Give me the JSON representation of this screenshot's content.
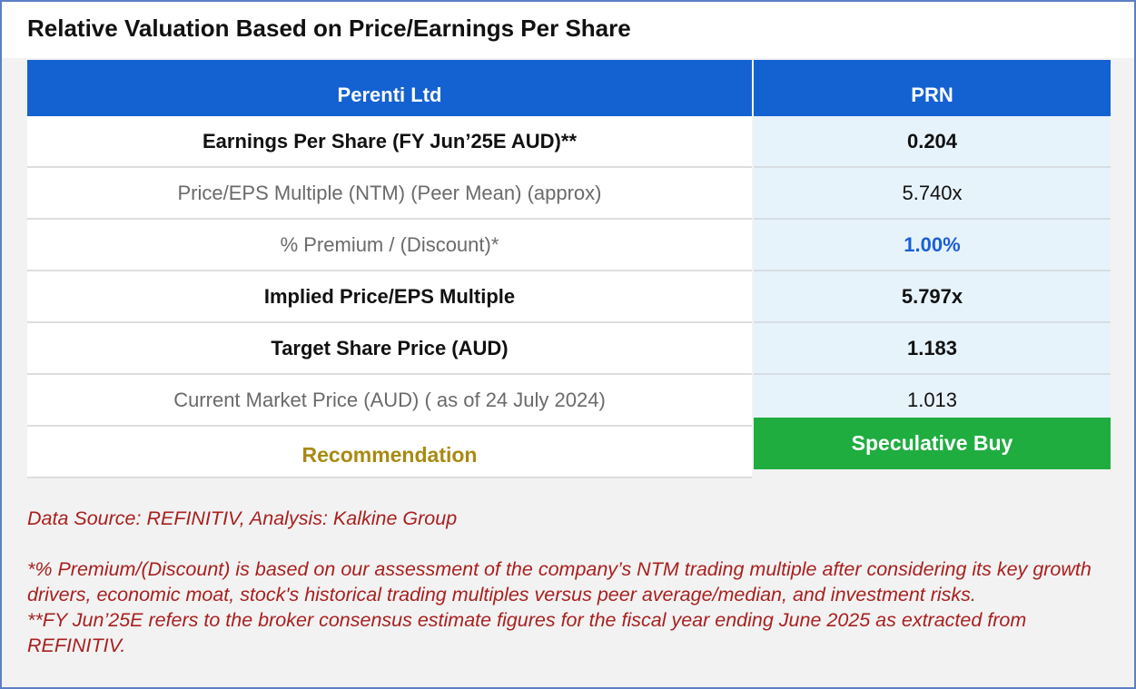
{
  "title": "Relative Valuation Based on Price/Earnings Per Share",
  "table": {
    "header": {
      "label": "Perenti Ltd",
      "value": "PRN"
    },
    "rows": [
      {
        "label": "Earnings Per Share (FY Jun’25E AUD)**",
        "value": "0.204"
      },
      {
        "label": "Price/EPS Multiple (NTM) (Peer Mean) (approx)",
        "value": "5.740x"
      },
      {
        "label": "% Premium / (Discount)*",
        "value": "1.00%"
      },
      {
        "label": "Implied Price/EPS Multiple",
        "value": "5.797x"
      },
      {
        "label": "Target Share Price (AUD)",
        "value": "1.183"
      },
      {
        "label": "Current Market Price (AUD) ( as of 24 July 2024)",
        "value": "1.013"
      }
    ],
    "recommendation": {
      "label": "Recommendation",
      "value": "Speculative Buy"
    }
  },
  "notes": {
    "source": "Data Source: REFINITIV, Analysis: Kalkine Group",
    "footnote1": "*% Premium/(Discount) is based on our assessment of the company’s NTM trading multiple after considering its key growth drivers, economic moat, stock's historical trading multiples versus peer average/median, and investment risks.",
    "footnote2": "**FY Jun’25E refers to the broker consensus estimate figures for the fiscal year ending June 2025 as extracted from REFINITIV."
  },
  "colors": {
    "header_blue": "#1461d2",
    "value_cell_bg": "#e7f3fb",
    "recommendation_green": "#1fad3f",
    "recommendation_label_gold": "#a88a12",
    "premium_blue": "#1a5fd6",
    "note_red": "#a8201f",
    "frame_border": "#5b7fc4"
  }
}
